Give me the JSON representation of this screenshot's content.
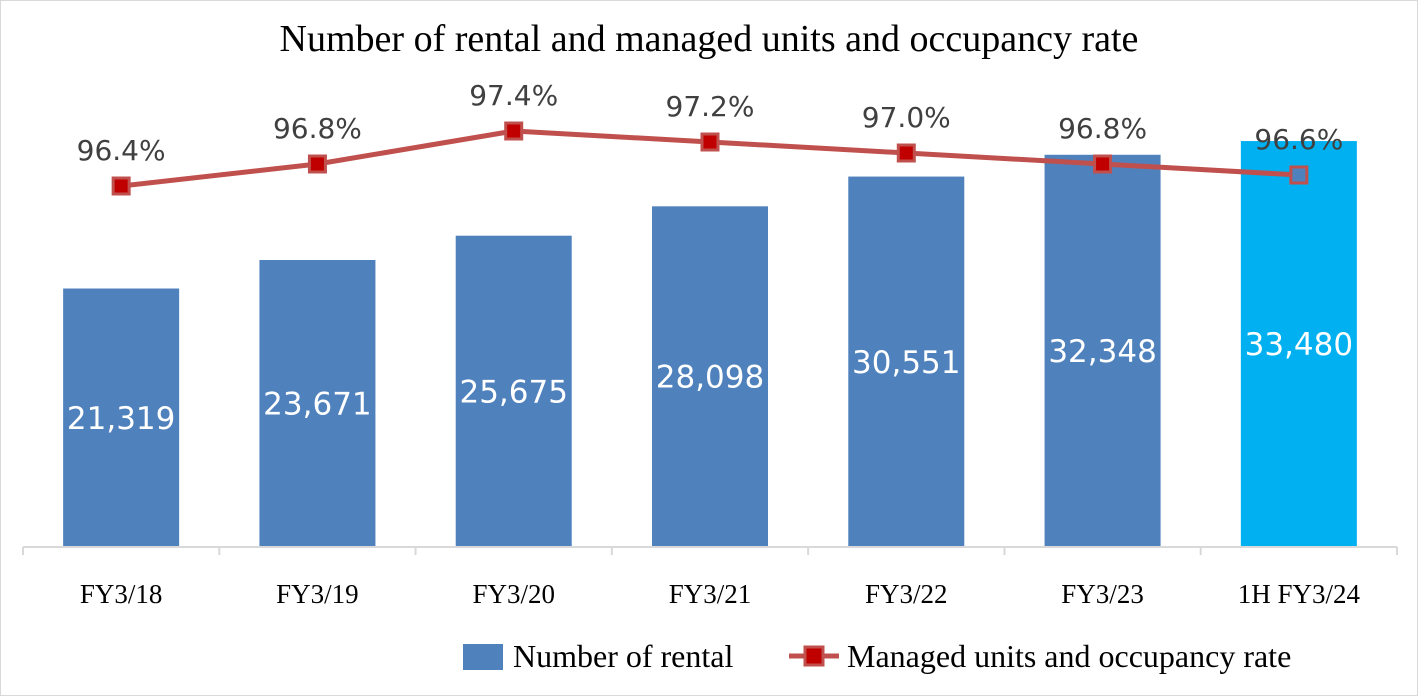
{
  "chart_data": {
    "type": "bar",
    "title": "Number of rental and managed units and occupancy rate",
    "categories": [
      "FY3/18",
      "FY3/19",
      "FY3/20",
      "FY3/21",
      "FY3/22",
      "FY3/23",
      "1H FY3/24"
    ],
    "series": [
      {
        "name": "Number of rental",
        "kind": "bar",
        "values": [
          21319,
          23671,
          25675,
          28098,
          30551,
          32348,
          33480
        ],
        "labels": [
          "21,319",
          "23,671",
          "25,675",
          "28,098",
          "30,551",
          "32,348",
          "33,480"
        ],
        "color": "#4f81bd",
        "highlight_color": "#00b0f0",
        "highlight_index": 6
      },
      {
        "name": "Managed units and occupancy rate",
        "kind": "line",
        "values": [
          96.4,
          96.8,
          97.4,
          97.2,
          97.0,
          96.8,
          96.6
        ],
        "labels": [
          "96.4%",
          "96.8%",
          "97.4%",
          "97.2%",
          "97.0%",
          "96.8%",
          "96.6%"
        ],
        "color": "#c0504d",
        "marker_color": "#c00000"
      }
    ],
    "ylim_bar": [
      0,
      40000
    ],
    "ylim_line": [
      92.0,
      98.0
    ],
    "grid": false,
    "legend_position": "bottom-right"
  }
}
